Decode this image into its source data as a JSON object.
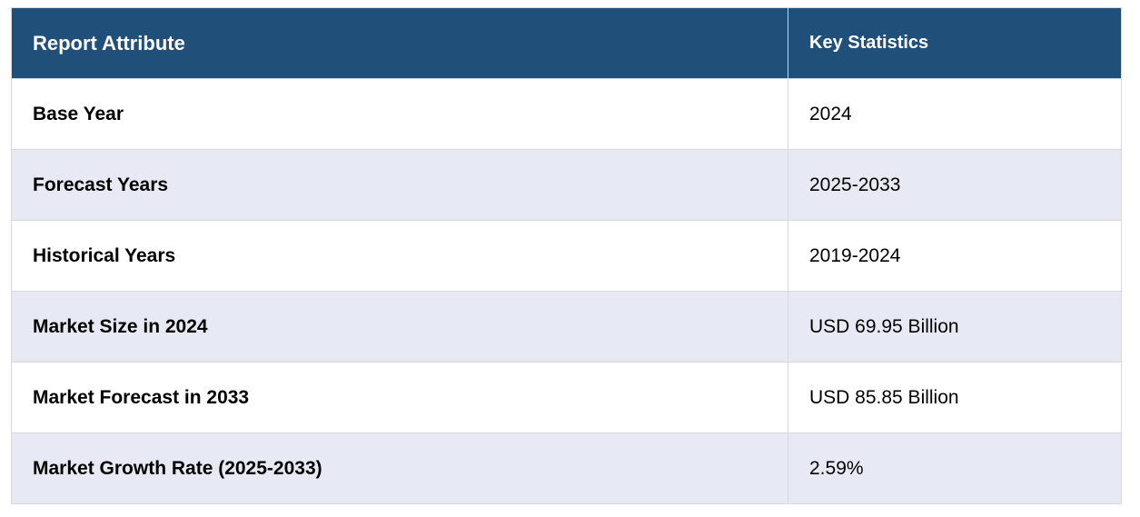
{
  "table": {
    "headers": [
      "Report Attribute",
      "Key Statistics"
    ],
    "rows": [
      {
        "attribute": "Base Year",
        "value": "2024"
      },
      {
        "attribute": "Forecast Years",
        "value": "2025-2033"
      },
      {
        "attribute": "Historical Years",
        "value": "2019-2024"
      },
      {
        "attribute": "Market Size in 2024",
        "value": "USD 69.95 Billion"
      },
      {
        "attribute": "Market Forecast in 2033",
        "value": "USD 85.85 Billion"
      },
      {
        "attribute": "Market Growth Rate (2025-2033)",
        "value": "2.59%"
      }
    ]
  },
  "colors": {
    "header_bg": "#204f7a",
    "header_text": "#ffffff",
    "row_alt_bg": "#e7e9f5",
    "row_bg": "#ffffff"
  }
}
